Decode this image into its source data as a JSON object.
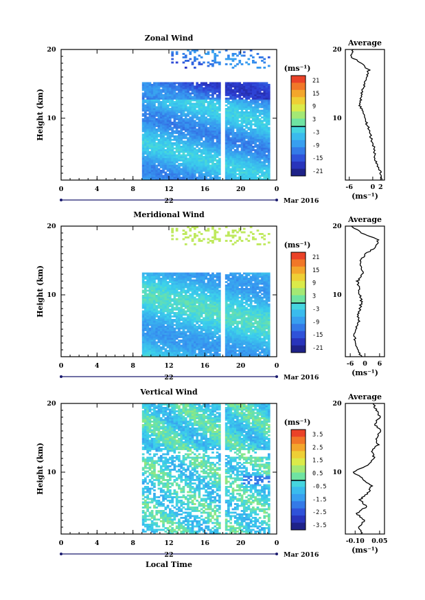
{
  "chart_data": [
    {
      "type": "heatmap",
      "title": "Zonal Wind",
      "ylabel": "Height (km)",
      "ylim": [
        1,
        20
      ],
      "yticks": [
        "10",
        "20"
      ],
      "xticks": [
        "0",
        "4",
        "8",
        "12",
        "16",
        "20",
        "0"
      ],
      "date_label": "22",
      "date_suffix": "Mar 2016",
      "colorbar": {
        "unit": "(ms⁻¹)",
        "ticks": [
          "21",
          "15",
          "9",
          "3",
          "-3",
          "-9",
          "-15",
          "-21"
        ],
        "range": [
          -21,
          21
        ]
      },
      "data_start_hour": 9,
      "data_end_hour": 24,
      "data_top_km": 15,
      "average": {
        "title": "Average",
        "xlabel": "(ms⁻¹)",
        "xticks": [
          "-6",
          "0",
          "2"
        ],
        "xlim": [
          -7,
          3
        ],
        "profile": [
          [
            2.6,
            1
          ],
          [
            2.0,
            2
          ],
          [
            1.4,
            3
          ],
          [
            0.6,
            4
          ],
          [
            0.4,
            5
          ],
          [
            0.2,
            6
          ],
          [
            -0.4,
            7
          ],
          [
            -0.6,
            8
          ],
          [
            -1.4,
            9
          ],
          [
            -2.2,
            10
          ],
          [
            -2.6,
            11
          ],
          [
            -3.4,
            12
          ],
          [
            -3.0,
            13
          ],
          [
            -2.6,
            14
          ],
          [
            -2.0,
            15
          ],
          [
            -1.6,
            16
          ],
          [
            -1.0,
            17
          ],
          [
            -3.0,
            18
          ],
          [
            -5.6,
            19
          ],
          [
            -5.0,
            20
          ]
        ]
      }
    },
    {
      "type": "heatmap",
      "title": "Meridional Wind",
      "ylabel": "Height (km)",
      "ylim": [
        1,
        20
      ],
      "yticks": [
        "10",
        "20"
      ],
      "xticks": [
        "0",
        "4",
        "8",
        "12",
        "16",
        "20",
        "0"
      ],
      "date_label": "22",
      "date_suffix": "Mar 2016",
      "colorbar": {
        "unit": "(ms⁻¹)",
        "ticks": [
          "21",
          "15",
          "9",
          "3",
          "-3",
          "-9",
          "-15",
          "-21"
        ],
        "range": [
          -21,
          21
        ]
      },
      "data_start_hour": 9,
      "data_end_hour": 24,
      "data_top_km": 13,
      "average": {
        "title": "Average",
        "xlabel": "(ms⁻¹)",
        "xticks": [
          "-6",
          "0",
          "6"
        ],
        "xlim": [
          -8,
          8
        ],
        "profile": [
          [
            -1.5,
            1
          ],
          [
            -3.0,
            2
          ],
          [
            -3.5,
            3
          ],
          [
            -4.5,
            4
          ],
          [
            -4.0,
            5
          ],
          [
            -2.5,
            6
          ],
          [
            -3.0,
            7
          ],
          [
            -2.0,
            8
          ],
          [
            -1.5,
            9
          ],
          [
            -2.0,
            10
          ],
          [
            -2.5,
            11
          ],
          [
            -3.0,
            12
          ],
          [
            -1.0,
            13
          ],
          [
            -1.5,
            14
          ],
          [
            -2.0,
            15
          ],
          [
            0.5,
            16
          ],
          [
            4.5,
            17
          ],
          [
            5.5,
            18
          ],
          [
            -1.5,
            19
          ],
          [
            -5.5,
            20
          ]
        ]
      }
    },
    {
      "type": "heatmap",
      "title": "Vertical Wind",
      "ylabel": "Height (km)",
      "ylim": [
        1,
        20
      ],
      "yticks": [
        "10",
        "20"
      ],
      "xticks": [
        "0",
        "4",
        "8",
        "12",
        "16",
        "20",
        "0"
      ],
      "xlabel": "Local Time",
      "date_label": "22",
      "date_suffix": "Mar 2016",
      "colorbar": {
        "unit": "(ms⁻¹)",
        "ticks": [
          "3.5",
          "2.5",
          "1.5",
          "0.5",
          "-0.5",
          "-1.5",
          "-2.5",
          "-3.5"
        ],
        "range": [
          -4,
          4
        ]
      },
      "data_start_hour": 9,
      "data_end_hour": 24,
      "data_top_km": 20,
      "average": {
        "title": "Average",
        "xlabel": "(ms⁻¹)",
        "xticks": [
          "-0.10",
          "0.05"
        ],
        "xlim": [
          -0.16,
          0.08
        ],
        "profile": [
          [
            -0.06,
            1
          ],
          [
            -0.08,
            2
          ],
          [
            -0.04,
            3
          ],
          [
            -0.09,
            4
          ],
          [
            -0.03,
            5
          ],
          [
            -0.07,
            6
          ],
          [
            -0.02,
            7
          ],
          [
            0.0,
            8
          ],
          [
            -0.05,
            9
          ],
          [
            -0.11,
            10
          ],
          [
            -0.03,
            11
          ],
          [
            0.02,
            12
          ],
          [
            0.0,
            13
          ],
          [
            0.04,
            14
          ],
          [
            0.03,
            15
          ],
          [
            0.06,
            16
          ],
          [
            0.02,
            17
          ],
          [
            0.05,
            18
          ],
          [
            0.03,
            19
          ],
          [
            0.01,
            20
          ]
        ]
      }
    }
  ]
}
